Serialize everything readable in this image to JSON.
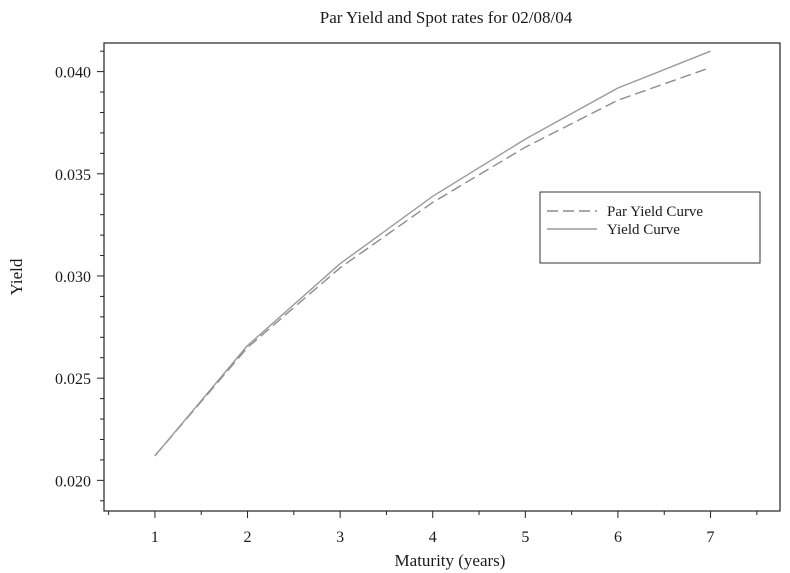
{
  "chart_data": {
    "type": "line",
    "title": "Par Yield and Spot rates for  02/08/04",
    "xlabel": "Maturity (years)",
    "ylabel": "Yield",
    "x": [
      1,
      2,
      3,
      4,
      5,
      6,
      7
    ],
    "xlim": [
      0.45,
      7.75
    ],
    "ylim": [
      0.0185,
      0.0414
    ],
    "x_ticks": [
      "1",
      "2",
      "3",
      "4",
      "5",
      "6",
      "7"
    ],
    "y_ticks": [
      "0.020",
      "0.025",
      "0.030",
      "0.035",
      "0.040"
    ],
    "y_tick_values": [
      0.02,
      0.025,
      0.03,
      0.035,
      0.04
    ],
    "grid": false,
    "legend_position": "right",
    "series": [
      {
        "name": "Par Yield Curve",
        "style": "dashed",
        "color": "#8c8c8c",
        "values": [
          0.0212,
          0.0265,
          0.0304,
          0.0336,
          0.0363,
          0.0386,
          0.0402
        ]
      },
      {
        "name": "Yield Curve",
        "style": "solid",
        "color": "#9a9a9a",
        "values": [
          0.0212,
          0.0266,
          0.0306,
          0.0339,
          0.0367,
          0.0392,
          0.041
        ]
      }
    ]
  }
}
